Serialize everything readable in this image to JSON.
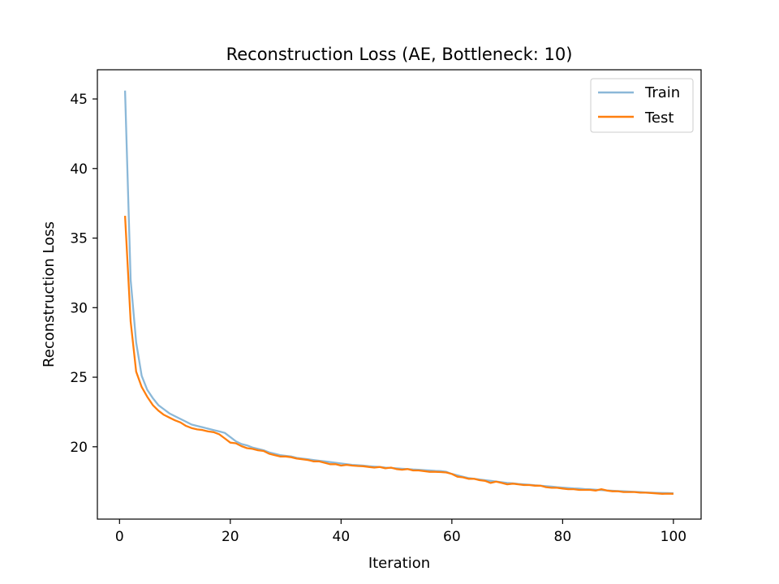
{
  "chart_data": {
    "type": "line",
    "title": "Reconstruction Loss (AE, Bottleneck: 10)",
    "xlabel": "Iteration",
    "ylabel": "Reconstruction Loss",
    "xlim": [
      -4,
      105
    ],
    "ylim": [
      14.8,
      47.1
    ],
    "xticks": [
      0,
      20,
      40,
      60,
      80,
      100
    ],
    "yticks": [
      20,
      25,
      30,
      35,
      40,
      45
    ],
    "grid": false,
    "legend_position": "top-right",
    "series": [
      {
        "name": "Train",
        "color": "#8bb8d8",
        "x": [
          1,
          2,
          3,
          4,
          5,
          6,
          7,
          8,
          9,
          10,
          11,
          12,
          13,
          14,
          15,
          16,
          17,
          18,
          19,
          20,
          21,
          22,
          23,
          24,
          25,
          26,
          27,
          28,
          29,
          30,
          31,
          32,
          33,
          34,
          35,
          36,
          37,
          38,
          39,
          40,
          41,
          42,
          43,
          44,
          45,
          46,
          47,
          48,
          49,
          50,
          51,
          52,
          53,
          54,
          55,
          56,
          57,
          58,
          59,
          60,
          61,
          62,
          63,
          64,
          65,
          66,
          67,
          68,
          69,
          70,
          71,
          72,
          73,
          74,
          75,
          76,
          77,
          78,
          79,
          80,
          81,
          82,
          83,
          84,
          85,
          86,
          87,
          88,
          89,
          90,
          91,
          92,
          93,
          94,
          95,
          96,
          97,
          98,
          99,
          100
        ],
        "y": [
          45.6,
          32.0,
          27.5,
          25.1,
          24.1,
          23.5,
          23.0,
          22.7,
          22.4,
          22.2,
          22.0,
          21.8,
          21.6,
          21.5,
          21.4,
          21.3,
          21.2,
          21.1,
          21.0,
          20.7,
          20.4,
          20.2,
          20.1,
          19.95,
          19.85,
          19.75,
          19.6,
          19.5,
          19.4,
          19.35,
          19.3,
          19.2,
          19.15,
          19.1,
          19.05,
          19.0,
          18.95,
          18.9,
          18.85,
          18.8,
          18.75,
          18.7,
          18.68,
          18.65,
          18.6,
          18.57,
          18.55,
          18.5,
          18.48,
          18.45,
          18.42,
          18.4,
          18.37,
          18.35,
          18.32,
          18.3,
          18.27,
          18.25,
          18.2,
          18.05,
          17.95,
          17.85,
          17.75,
          17.7,
          17.65,
          17.6,
          17.55,
          17.5,
          17.45,
          17.4,
          17.37,
          17.33,
          17.3,
          17.27,
          17.23,
          17.2,
          17.17,
          17.14,
          17.1,
          17.07,
          17.04,
          17.01,
          16.99,
          16.96,
          16.94,
          16.91,
          16.89,
          16.86,
          16.84,
          16.82,
          16.8,
          16.78,
          16.76,
          16.74,
          16.72,
          16.7,
          16.69,
          16.68,
          16.67,
          16.66
        ]
      },
      {
        "name": "Test",
        "color": "#ff7f0e",
        "x": [
          1,
          2,
          3,
          4,
          5,
          6,
          7,
          8,
          9,
          10,
          11,
          12,
          13,
          14,
          15,
          16,
          17,
          18,
          19,
          20,
          21,
          22,
          23,
          24,
          25,
          26,
          27,
          28,
          29,
          30,
          31,
          32,
          33,
          34,
          35,
          36,
          37,
          38,
          39,
          40,
          41,
          42,
          43,
          44,
          45,
          46,
          47,
          48,
          49,
          50,
          51,
          52,
          53,
          54,
          55,
          56,
          57,
          58,
          59,
          60,
          61,
          62,
          63,
          64,
          65,
          66,
          67,
          68,
          69,
          70,
          71,
          72,
          73,
          74,
          75,
          76,
          77,
          78,
          79,
          80,
          81,
          82,
          83,
          84,
          85,
          86,
          87,
          88,
          89,
          90,
          91,
          92,
          93,
          94,
          95,
          96,
          97,
          98,
          99,
          100
        ],
        "y": [
          36.6,
          29.0,
          25.4,
          24.3,
          23.6,
          23.0,
          22.6,
          22.3,
          22.1,
          21.9,
          21.75,
          21.5,
          21.35,
          21.25,
          21.2,
          21.1,
          21.05,
          20.9,
          20.6,
          20.3,
          20.25,
          20.05,
          19.9,
          19.85,
          19.75,
          19.7,
          19.5,
          19.4,
          19.3,
          19.3,
          19.25,
          19.15,
          19.1,
          19.05,
          18.95,
          18.95,
          18.85,
          18.75,
          18.75,
          18.65,
          18.7,
          18.65,
          18.62,
          18.6,
          18.55,
          18.5,
          18.55,
          18.45,
          18.5,
          18.4,
          18.35,
          18.4,
          18.3,
          18.3,
          18.25,
          18.2,
          18.2,
          18.18,
          18.15,
          18.05,
          17.85,
          17.8,
          17.7,
          17.7,
          17.6,
          17.55,
          17.4,
          17.5,
          17.4,
          17.3,
          17.35,
          17.3,
          17.25,
          17.25,
          17.2,
          17.2,
          17.1,
          17.05,
          17.05,
          17.0,
          16.95,
          16.95,
          16.9,
          16.9,
          16.9,
          16.85,
          16.95,
          16.85,
          16.8,
          16.8,
          16.75,
          16.75,
          16.75,
          16.7,
          16.7,
          16.68,
          16.65,
          16.62,
          16.63,
          16.62
        ]
      }
    ]
  }
}
